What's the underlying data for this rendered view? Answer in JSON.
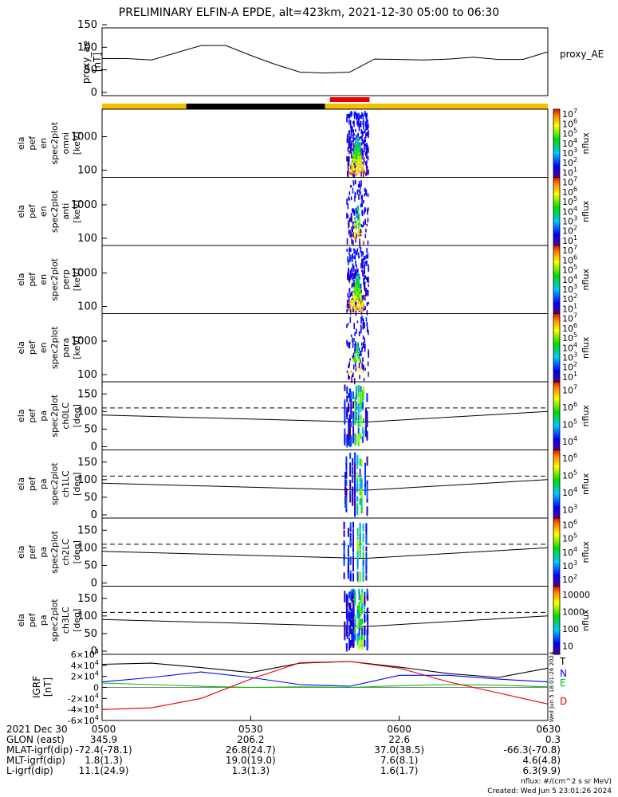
{
  "title": "PRELIMINARY ELFIN-A EPDE, alt=423km, 2021-12-30 05:00 to 06:30",
  "colors": {
    "gold": "#f2c200",
    "black": "#000000",
    "red": "#e00000",
    "blue": "#0000ff",
    "green": "#00c000"
  },
  "time_ticks": [
    "0500",
    "0530",
    "0600",
    "0630"
  ],
  "ephemeris": {
    "rows": [
      {
        "label": "2021 Dec 30",
        "values": [
          "0500",
          "0530",
          "0600",
          "0630"
        ]
      },
      {
        "label": "GLON (east)",
        "values": [
          "345.9",
          "206.2",
          "22.6",
          "0.3"
        ]
      },
      {
        "label": "MLAT-igrf(dip)",
        "values": [
          "-72.4(-78.1)",
          "26.8(24.7)",
          "37.0(38.5)",
          "-66.3(-70.8)"
        ]
      },
      {
        "label": "MLT-igrf(dip)",
        "values": [
          "1.8(1.3)",
          "19.0(19.0)",
          "7.6(8.1)",
          "4.6(4.8)"
        ]
      },
      {
        "label": "L-igrf(dip)",
        "values": [
          "11.1(24.9)",
          "1.3(1.3)",
          "1.6(1.7)",
          "6.3(9.9)"
        ]
      }
    ]
  },
  "footer": {
    "units": "nflux: #/(cm^2 s sr MeV)",
    "created": "Created: Wed Jun  5 23:01:26 2024",
    "side_stamp": "Wed Jun  5 18:01:26 2024"
  },
  "chart_data": [
    {
      "type": "line",
      "name": "proxy_ae",
      "ylabel": "proxy_ae [nT]",
      "legend": "proxy_AE",
      "ylim": [
        0,
        150
      ],
      "yticks": [
        "0",
        "50",
        "100",
        "150"
      ],
      "x": [
        "0500",
        "0505",
        "0510",
        "0515",
        "0520",
        "0525",
        "0530",
        "0535",
        "0540",
        "0545",
        "0550",
        "0555",
        "0600",
        "0605",
        "0610",
        "0615",
        "0620",
        "0625",
        "0630"
      ],
      "values": [
        75,
        75,
        72,
        88,
        104,
        104,
        82,
        62,
        45,
        43,
        45,
        74,
        73,
        72,
        74,
        78,
        73,
        73,
        90
      ]
    },
    {
      "type": "bar",
      "name": "status",
      "segments": [
        {
          "start": "0500",
          "end": "0517",
          "color": "gold"
        },
        {
          "start": "0517",
          "end": "0545",
          "color": "black"
        },
        {
          "start": "0545",
          "end": "0630",
          "color": "gold"
        }
      ],
      "science_zone": {
        "start": "0546",
        "end": "0554",
        "color": "red"
      }
    },
    {
      "type": "heatmap",
      "name": "spectra",
      "panels": [
        {
          "ylabel": [
            "ela",
            "pef",
            "en",
            "spec2plot",
            "omni",
            "[keV]"
          ],
          "yticks": [
            "100",
            "1000"
          ],
          "cbar": [
            "10^1",
            "10^2",
            "10^3",
            "10^4",
            "10^5",
            "10^6",
            "10^7"
          ],
          "cblabel": "nflux"
        },
        {
          "ylabel": [
            "ela",
            "pef",
            "en",
            "spec2plot",
            "anti",
            "[keV]"
          ],
          "yticks": [
            "100",
            "1000"
          ],
          "cbar": [
            "10^1",
            "10^2",
            "10^3",
            "10^4",
            "10^5",
            "10^6",
            "10^7"
          ],
          "cblabel": "nflux"
        },
        {
          "ylabel": [
            "ela",
            "pef",
            "en",
            "spec2plot",
            "perp",
            "[keV]"
          ],
          "yticks": [
            "100",
            "1000"
          ],
          "cbar": [
            "10^1",
            "10^2",
            "10^3",
            "10^4",
            "10^5",
            "10^6",
            "10^7"
          ],
          "cblabel": "nflux"
        },
        {
          "ylabel": [
            "ela",
            "pef",
            "en",
            "spec2plot",
            "para",
            "[keV]"
          ],
          "yticks": [
            "100",
            "1000"
          ],
          "cbar": [
            "10^1",
            "10^2",
            "10^3",
            "10^4",
            "10^5",
            "10^6",
            "10^7"
          ],
          "cblabel": "nflux"
        }
      ],
      "data_window": [
        "0548",
        "0554"
      ]
    },
    {
      "type": "heatmap",
      "name": "pitch_angle",
      "ylim": [
        0,
        180
      ],
      "panels": [
        {
          "ylabel": [
            "ela",
            "pef",
            "pa",
            "spec2plot",
            "ch0LC",
            "[deg]"
          ],
          "yticks": [
            "0",
            "50",
            "100",
            "150"
          ],
          "cbar": [
            "10^4",
            "10^5",
            "10^6",
            "10^7"
          ],
          "cblabel": "nflux"
        },
        {
          "ylabel": [
            "ela",
            "pef",
            "pa",
            "spec2plot",
            "ch1LC",
            "[deg]"
          ],
          "yticks": [
            "0",
            "50",
            "100",
            "150"
          ],
          "cbar": [
            "10^3",
            "10^4",
            "10^5",
            "10^6"
          ],
          "cblabel": "nflux"
        },
        {
          "ylabel": [
            "ela",
            "pef",
            "pa",
            "spec2plot",
            "ch2LC",
            "[deg]"
          ],
          "yticks": [
            "0",
            "50",
            "100",
            "150"
          ],
          "cbar": [
            "10^2",
            "10^3",
            "10^4",
            "10^5",
            "10^6"
          ],
          "cblabel": "nflux"
        },
        {
          "ylabel": [
            "ela",
            "pef",
            "pa",
            "spec2plot",
            "ch3LC",
            "[deg]"
          ],
          "yticks": [
            "0",
            "50",
            "100",
            "150"
          ],
          "cbar": [
            "10",
            "100",
            "1000",
            "10000"
          ],
          "cblabel": "nflux"
        }
      ],
      "loss_cone_dashed": 110,
      "loss_cone_solid_start": 90,
      "loss_cone_solid_min": 70,
      "loss_cone_solid_end": 100
    },
    {
      "type": "line",
      "name": "igrf",
      "ylabel": "IGRF [nT]",
      "ylim": [
        -60000,
        60000
      ],
      "yticks": [
        "-6×10^4",
        "-4×10^4",
        "-2×10^4",
        "0",
        "2×10^4",
        "4×10^4",
        "6×10^4"
      ],
      "x_minutes": [
        0,
        10,
        20,
        30,
        40,
        50,
        60,
        70,
        80,
        90
      ],
      "series": [
        {
          "name": "T",
          "color": "black",
          "values": [
            42000,
            44000,
            36000,
            27000,
            44000,
            47000,
            37000,
            25000,
            18000,
            35000
          ]
        },
        {
          "name": "N",
          "color": "blue",
          "values": [
            10000,
            18000,
            28000,
            18000,
            5000,
            2000,
            22000,
            22000,
            15000,
            10000
          ]
        },
        {
          "name": "E",
          "color": "green",
          "values": [
            8000,
            5000,
            2000,
            0,
            1000,
            0,
            3000,
            5000,
            4000,
            1000
          ]
        },
        {
          "name": "D",
          "color": "red",
          "values": [
            -40000,
            -37000,
            -20000,
            15000,
            45000,
            47000,
            35000,
            10000,
            -10000,
            -30000
          ]
        }
      ]
    }
  ]
}
